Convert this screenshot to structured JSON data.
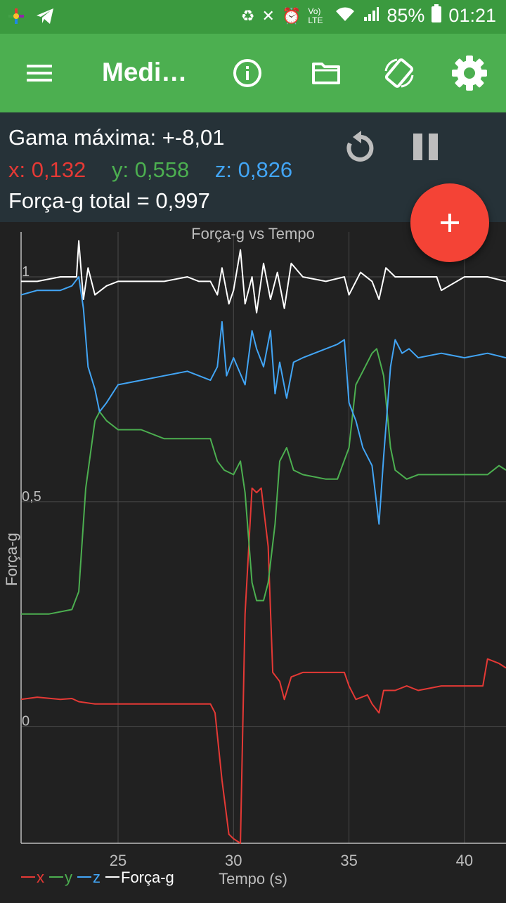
{
  "status_bar": {
    "battery": "85%",
    "time": "01:21",
    "network": "Vo) LTE"
  },
  "app_bar": {
    "title": "Medi…",
    "icons": [
      "menu-icon",
      "info-icon",
      "folder-icon",
      "screen-rotation-icon",
      "settings-icon"
    ]
  },
  "info": {
    "max_range": "Gama máxima: +-8,01",
    "x": "x: 0,132",
    "y": "y: 0,558",
    "z": "z: 0,826",
    "total": "Força-g total = 0,997"
  },
  "colors": {
    "x": "#e53935",
    "y": "#4caf50",
    "z": "#42a5f5",
    "total": "#ffffff",
    "fab": "#f44336",
    "appbar": "#4caf50"
  },
  "chart_data": {
    "type": "line",
    "title": "Força-g vs Tempo",
    "xlabel": "Tempo (s)",
    "ylabel": "Força-g",
    "xlim": [
      20.8,
      41.8
    ],
    "ylim": [
      -0.26,
      1.1
    ],
    "x_ticks": [
      25,
      30,
      35,
      40
    ],
    "y_ticks": [
      0,
      0.5,
      1
    ],
    "x_tick_labels": [
      "25",
      "30",
      "35",
      "40"
    ],
    "y_tick_labels": [
      "0",
      "0,5",
      "1"
    ],
    "grid": true,
    "legend": [
      "x",
      "y",
      "z",
      "Força-g"
    ],
    "series": [
      {
        "name": "x",
        "x": [
          20.8,
          21.5,
          22.5,
          23.0,
          23.3,
          24.0,
          25.0,
          26.0,
          27.0,
          28.0,
          29.0,
          29.2,
          29.5,
          29.8,
          30.0,
          30.3,
          30.5,
          30.8,
          31.0,
          31.2,
          31.5,
          31.7,
          32.0,
          32.2,
          32.5,
          33.0,
          34.0,
          34.8,
          35.0,
          35.3,
          35.8,
          36.0,
          36.3,
          36.5,
          37.0,
          37.5,
          38.0,
          39.0,
          40.0,
          40.8,
          41.0,
          41.5,
          41.8
        ],
        "y": [
          0.06,
          0.065,
          0.06,
          0.062,
          0.055,
          0.05,
          0.05,
          0.05,
          0.05,
          0.05,
          0.05,
          0.03,
          -0.12,
          -0.24,
          -0.25,
          -0.26,
          0.25,
          0.53,
          0.52,
          0.53,
          0.4,
          0.12,
          0.1,
          0.06,
          0.11,
          0.12,
          0.12,
          0.12,
          0.09,
          0.06,
          0.07,
          0.05,
          0.03,
          0.08,
          0.08,
          0.09,
          0.08,
          0.09,
          0.09,
          0.09,
          0.15,
          0.14,
          0.13
        ]
      },
      {
        "name": "y",
        "x": [
          20.8,
          22.0,
          23.0,
          23.3,
          23.6,
          24.0,
          24.2,
          24.5,
          25.0,
          26.0,
          27.0,
          28.0,
          29.0,
          29.3,
          29.6,
          30.0,
          30.3,
          30.5,
          30.8,
          31.0,
          31.3,
          31.5,
          31.8,
          32.0,
          32.3,
          32.6,
          33.0,
          34.0,
          34.5,
          35.0,
          35.3,
          35.6,
          36.0,
          36.2,
          36.5,
          36.8,
          37.0,
          37.5,
          38.0,
          39.0,
          40.0,
          41.0,
          41.5,
          41.8
        ],
        "y": [
          0.25,
          0.25,
          0.26,
          0.3,
          0.53,
          0.68,
          0.7,
          0.68,
          0.66,
          0.66,
          0.64,
          0.64,
          0.64,
          0.59,
          0.57,
          0.56,
          0.59,
          0.52,
          0.32,
          0.28,
          0.28,
          0.32,
          0.45,
          0.59,
          0.62,
          0.57,
          0.56,
          0.55,
          0.55,
          0.62,
          0.76,
          0.79,
          0.83,
          0.84,
          0.78,
          0.62,
          0.57,
          0.55,
          0.56,
          0.56,
          0.56,
          0.56,
          0.58,
          0.57
        ]
      },
      {
        "name": "z",
        "x": [
          20.8,
          21.5,
          22.5,
          23.0,
          23.3,
          23.5,
          23.7,
          24.0,
          24.2,
          24.5,
          25.0,
          26.0,
          27.0,
          28.0,
          29.0,
          29.3,
          29.5,
          29.7,
          30.0,
          30.5,
          30.8,
          31.0,
          31.3,
          31.6,
          31.8,
          32.0,
          32.3,
          32.6,
          33.0,
          34.0,
          34.5,
          34.8,
          35.0,
          35.3,
          35.6,
          36.0,
          36.3,
          36.5,
          36.8,
          37.0,
          37.3,
          37.6,
          38.0,
          39.0,
          40.0,
          41.0,
          41.8
        ],
        "y": [
          0.96,
          0.97,
          0.97,
          0.98,
          1.0,
          0.93,
          0.8,
          0.75,
          0.7,
          0.72,
          0.76,
          0.77,
          0.78,
          0.79,
          0.77,
          0.8,
          0.9,
          0.78,
          0.82,
          0.76,
          0.88,
          0.84,
          0.8,
          0.88,
          0.74,
          0.81,
          0.73,
          0.81,
          0.82,
          0.84,
          0.85,
          0.86,
          0.72,
          0.68,
          0.62,
          0.58,
          0.45,
          0.6,
          0.8,
          0.86,
          0.83,
          0.84,
          0.82,
          0.83,
          0.82,
          0.83,
          0.82
        ]
      },
      {
        "name": "Força-g",
        "x": [
          20.8,
          21.5,
          22.5,
          23.0,
          23.2,
          23.3,
          23.5,
          23.7,
          24.0,
          24.5,
          25.0,
          26.0,
          27.0,
          28.0,
          28.5,
          29.0,
          29.3,
          29.5,
          29.8,
          30.0,
          30.3,
          30.5,
          30.8,
          31.0,
          31.3,
          31.6,
          31.9,
          32.2,
          32.5,
          33.0,
          34.0,
          34.8,
          35.0,
          35.5,
          36.0,
          36.3,
          36.6,
          37.0,
          37.5,
          38.0,
          38.8,
          39.0,
          40.0,
          41.0,
          41.8
        ],
        "y": [
          0.99,
          0.99,
          1.0,
          1.0,
          1.0,
          1.08,
          0.95,
          1.02,
          0.96,
          0.98,
          0.99,
          0.99,
          0.99,
          1.0,
          0.99,
          0.99,
          0.96,
          1.02,
          0.94,
          0.97,
          1.06,
          0.94,
          1.0,
          0.92,
          1.03,
          0.95,
          1.01,
          0.93,
          1.03,
          1.0,
          0.99,
          1.0,
          0.96,
          1.01,
          0.99,
          0.95,
          1.02,
          1.0,
          1.0,
          1.0,
          1.0,
          0.97,
          1.0,
          1.0,
          0.99
        ]
      }
    ]
  }
}
